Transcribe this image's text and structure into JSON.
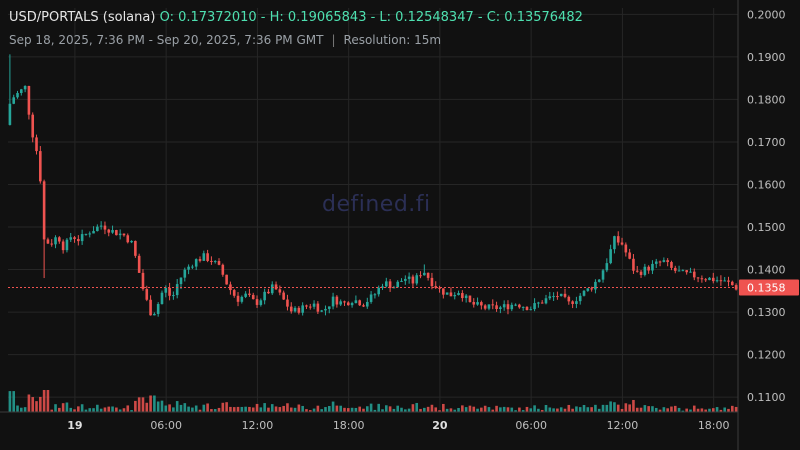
{
  "header": {
    "pair": "USD/PORTALS (solana)",
    "ohlc": "O: 0.17372010 - H: 0.19065843 - L: 0.12548347 - C: 0.13576482",
    "range": "Sep 18, 2025, 7:36 PM - Sep 20, 2025, 7:36 PM GMT",
    "separator": "|",
    "resolution": "Resolution: 15m"
  },
  "watermark": "defined.fi",
  "colors": {
    "up": "#26a69a",
    "down": "#ef5350",
    "current": "#ef5350",
    "grid": "#262626",
    "background": "#111111"
  },
  "chart_data": {
    "type": "candlestick",
    "ylim": [
      0.1065,
      0.2015
    ],
    "y_ticks": [
      "0.2000",
      "0.1900",
      "0.1800",
      "0.1700",
      "0.1600",
      "0.1500",
      "0.1400",
      "0.1300",
      "0.1200",
      "0.1100"
    ],
    "y_tick_values": [
      0.2,
      0.19,
      0.18,
      0.17,
      0.16,
      0.15,
      0.14,
      0.13,
      0.12,
      0.11
    ],
    "x_ticks": [
      "19",
      "06:00",
      "12:00",
      "18:00",
      "20",
      "06:00",
      "12:00",
      "18:00"
    ],
    "x_ticks_bold": [
      true,
      false,
      false,
      false,
      true,
      false,
      false,
      false
    ],
    "x_tick_hours": [
      4.4,
      10.4,
      16.4,
      22.4,
      28.4,
      34.4,
      40.4,
      46.4
    ],
    "x_range_hours": [
      0,
      48
    ],
    "current_price": 0.13576482,
    "current_label": "0.1358",
    "volume_max": 1,
    "anchors": [
      [
        0,
        0.174
      ],
      [
        0.3,
        0.18
      ],
      [
        0.8,
        0.1815
      ],
      [
        1.3,
        0.183
      ],
      [
        1.6,
        0.174
      ],
      [
        2.0,
        0.168
      ],
      [
        2.3,
        0.16
      ],
      [
        2.5,
        0.147
      ],
      [
        2.9,
        0.146
      ],
      [
        3.4,
        0.148
      ],
      [
        3.8,
        0.145
      ],
      [
        4.3,
        0.148
      ],
      [
        4.8,
        0.147
      ],
      [
        5.5,
        0.149
      ],
      [
        6.3,
        0.1505
      ],
      [
        7.0,
        0.149
      ],
      [
        7.8,
        0.148
      ],
      [
        8.3,
        0.146
      ],
      [
        8.7,
        0.14
      ],
      [
        9.1,
        0.134
      ],
      [
        9.6,
        0.129
      ],
      [
        10.0,
        0.132
      ],
      [
        10.4,
        0.136
      ],
      [
        10.9,
        0.133
      ],
      [
        11.3,
        0.137
      ],
      [
        11.8,
        0.14
      ],
      [
        12.4,
        0.142
      ],
      [
        13.0,
        0.143
      ],
      [
        13.6,
        0.142
      ],
      [
        14.1,
        0.14
      ],
      [
        14.6,
        0.136
      ],
      [
        15.2,
        0.133
      ],
      [
        15.8,
        0.134
      ],
      [
        16.4,
        0.132
      ],
      [
        17.0,
        0.134
      ],
      [
        17.6,
        0.136
      ],
      [
        18.2,
        0.133
      ],
      [
        18.8,
        0.13
      ],
      [
        19.5,
        0.131
      ],
      [
        20.2,
        0.132
      ],
      [
        20.8,
        0.13
      ],
      [
        21.5,
        0.133
      ],
      [
        22.2,
        0.132
      ],
      [
        22.8,
        0.133
      ],
      [
        23.5,
        0.132
      ],
      [
        24.2,
        0.134
      ],
      [
        24.8,
        0.137
      ],
      [
        25.5,
        0.136
      ],
      [
        26.2,
        0.138
      ],
      [
        26.8,
        0.137
      ],
      [
        27.4,
        0.14
      ],
      [
        28.0,
        0.137
      ],
      [
        28.6,
        0.135
      ],
      [
        29.2,
        0.134
      ],
      [
        29.8,
        0.135
      ],
      [
        30.5,
        0.132
      ],
      [
        31.5,
        0.131
      ],
      [
        32.5,
        0.131
      ],
      [
        33.5,
        0.132
      ],
      [
        34.5,
        0.131
      ],
      [
        35.5,
        0.133
      ],
      [
        36.3,
        0.134
      ],
      [
        37.0,
        0.132
      ],
      [
        37.8,
        0.134
      ],
      [
        38.5,
        0.136
      ],
      [
        39.0,
        0.138
      ],
      [
        39.5,
        0.142
      ],
      [
        40.0,
        0.147
      ],
      [
        40.5,
        0.146
      ],
      [
        41.0,
        0.142
      ],
      [
        41.4,
        0.139
      ],
      [
        42.0,
        0.14
      ],
      [
        42.6,
        0.141
      ],
      [
        43.2,
        0.142
      ],
      [
        43.8,
        0.14
      ],
      [
        44.5,
        0.139
      ],
      [
        45.3,
        0.1385
      ],
      [
        46.0,
        0.138
      ],
      [
        46.8,
        0.1375
      ],
      [
        47.5,
        0.1368
      ],
      [
        48.0,
        0.1358
      ]
    ],
    "candle_count": 192,
    "spikes": [
      [
        0.15,
        0.1906
      ],
      [
        2.3,
        0.138
      ],
      [
        9.5,
        0.1255
      ],
      [
        27.3,
        0.1412
      ],
      [
        40.1,
        0.149
      ]
    ]
  }
}
